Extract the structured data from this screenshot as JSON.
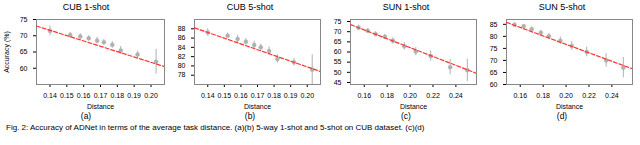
{
  "chart_data": [
    {
      "type": "scatter",
      "title": "CUB 1-shot",
      "xlabel": "Distance",
      "ylabel": "Accuracy (%)",
      "xlim": [
        0.132,
        0.208
      ],
      "ylim": [
        55,
        75
      ],
      "xticks": [
        0.14,
        0.15,
        0.16,
        0.17,
        0.18,
        0.19,
        {
          "value": 0.2,
          "label": "0.20"
        }
      ],
      "yticks": [
        60,
        65,
        70,
        75
      ],
      "series": [
        {
          "type": "scatter",
          "x": [
            0.14,
            0.152,
            0.158,
            0.163,
            0.168,
            0.172,
            0.177,
            0.182,
            0.192,
            0.203
          ],
          "values": [
            71.5,
            70.2,
            69.8,
            69.2,
            68.5,
            68.0,
            67.2,
            65.5,
            64.2,
            62.0
          ],
          "yerr": [
            1.5,
            0.8,
            0.8,
            0.8,
            1.0,
            0.8,
            1.0,
            1.2,
            1.0,
            3.8
          ],
          "color": "#b0b0b0",
          "marker": "circle"
        },
        {
          "type": "line",
          "x": [
            0.132,
            0.208
          ],
          "values": [
            73.0,
            60.5
          ],
          "color": "#ff3333",
          "line_style": "dashed"
        }
      ],
      "annotations": [
        "(a)"
      ]
    },
    {
      "type": "scatter",
      "title": "CUB 5-shot",
      "xlabel": "Distance",
      "xlim": [
        0.132,
        0.208
      ],
      "ylim": [
        76,
        90
      ],
      "xticks": [
        0.14,
        0.15,
        0.16,
        0.17,
        0.18,
        0.19,
        {
          "value": 0.2,
          "label": "0.20"
        }
      ],
      "yticks": [
        78,
        80,
        82,
        84,
        86,
        88
      ],
      "series": [
        {
          "type": "scatter",
          "x": [
            0.14,
            0.152,
            0.158,
            0.163,
            0.168,
            0.172,
            0.177,
            0.182,
            0.192,
            0.203
          ],
          "values": [
            87.2,
            86.5,
            85.8,
            85.2,
            84.5,
            84.0,
            83.2,
            81.5,
            80.8,
            79.2
          ],
          "yerr": [
            0.8,
            0.6,
            0.8,
            0.7,
            0.8,
            0.7,
            0.9,
            0.9,
            0.8,
            3.2
          ],
          "color": "#b0b0b0",
          "marker": "circle"
        },
        {
          "type": "line",
          "x": [
            0.132,
            0.208
          ],
          "values": [
            88.2,
            78.8
          ],
          "color": "#ff3333",
          "line_style": "dashed"
        }
      ],
      "annotations": [
        "(b)"
      ]
    },
    {
      "type": "scatter",
      "title": "SUN 1-shot",
      "xlabel": "Distance",
      "xlim": [
        0.148,
        0.258
      ],
      "ylim": [
        44,
        76
      ],
      "xticks": [
        0.16,
        0.18,
        {
          "value": 0.2,
          "label": "0.20"
        },
        0.22,
        0.24
      ],
      "yticks": [
        45,
        50,
        55,
        60,
        65,
        70,
        75
      ],
      "series": [
        {
          "type": "scatter",
          "x": [
            0.155,
            0.163,
            0.17,
            0.178,
            0.185,
            0.195,
            0.205,
            0.218,
            0.235,
            0.25
          ],
          "values": [
            72.0,
            70.5,
            68.8,
            67.5,
            65.5,
            62.8,
            60.2,
            58.0,
            52.5,
            51.0
          ],
          "yerr": [
            1.2,
            1.0,
            1.2,
            1.2,
            1.5,
            1.8,
            2.0,
            2.5,
            3.8,
            5.5
          ],
          "color": "#b0b0b0",
          "marker": "circle"
        },
        {
          "type": "line",
          "x": [
            0.148,
            0.258
          ],
          "values": [
            73.5,
            49.5
          ],
          "color": "#ff3333",
          "line_style": "dashed"
        }
      ],
      "annotations": [
        "(c)"
      ]
    },
    {
      "type": "scatter",
      "title": "SUN 5-shot",
      "xlabel": "Distance",
      "xlim": [
        0.148,
        0.258
      ],
      "ylim": [
        60,
        87
      ],
      "xticks": [
        0.16,
        0.18,
        {
          "value": 0.2,
          "label": "0.20"
        },
        0.22,
        0.24
      ],
      "yticks": [
        60,
        65,
        70,
        75,
        80,
        85
      ],
      "series": [
        {
          "type": "scatter",
          "x": [
            0.155,
            0.163,
            0.17,
            0.178,
            0.185,
            0.195,
            0.205,
            0.218,
            0.235,
            0.25
          ],
          "values": [
            84.8,
            84.2,
            83.0,
            81.5,
            80.0,
            78.2,
            76.0,
            73.5,
            70.0,
            67.0
          ],
          "yerr": [
            0.8,
            0.7,
            0.9,
            1.0,
            1.2,
            1.5,
            1.8,
            2.0,
            2.8,
            4.2
          ],
          "color": "#b0b0b0",
          "marker": "circle"
        },
        {
          "type": "line",
          "x": [
            0.148,
            0.258
          ],
          "values": [
            85.8,
            66.5
          ],
          "color": "#ff3333",
          "line_style": "dashed"
        }
      ],
      "annotations": [
        "(d)"
      ]
    }
  ],
  "caption": "Fig. 2: Accuracy of ADNet in terms of the average task distance. (a)(b) 5-way 1-shot and 5-shot on CUB dataset. (c)(d)"
}
